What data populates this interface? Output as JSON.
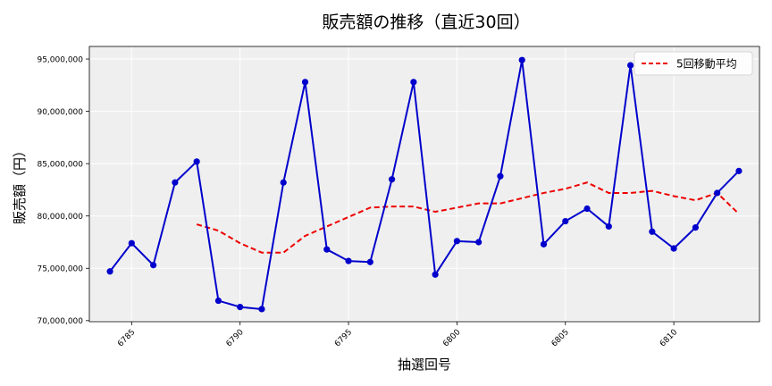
{
  "chart_data": {
    "type": "line",
    "title": "販売額の推移（直近30回）",
    "xlabel": "抽選回号",
    "ylabel": "販売額（円）",
    "x": [
      6784,
      6785,
      6786,
      6787,
      6788,
      6789,
      6790,
      6791,
      6792,
      6793,
      6794,
      6795,
      6796,
      6797,
      6798,
      6799,
      6800,
      6801,
      6802,
      6803,
      6804,
      6805,
      6806,
      6807,
      6808,
      6809,
      6810,
      6811,
      6812,
      6813
    ],
    "xlim": [
      6783.05,
      6813.95
    ],
    "ylim": [
      69900000,
      96200000
    ],
    "x_ticks": [
      "6785",
      "6790",
      "6795",
      "6800",
      "6805",
      "6810"
    ],
    "y_ticks": [
      "70,000,000",
      "75,000,000",
      "80,000,000",
      "85,000,000",
      "90,000,000",
      "95,000,000"
    ],
    "grid": true,
    "legend_position": "top-right",
    "series": [
      {
        "values": [
          74700000,
          77400000,
          75300000,
          83200000,
          85200000,
          71900000,
          71300000,
          71100000,
          83200000,
          92800000,
          76800000,
          75700000,
          75600000,
          83500000,
          92800000,
          74400000,
          77600000,
          77500000,
          83800000,
          94900000,
          77300000,
          79500000,
          80700000,
          79000000,
          94400000,
          78500000,
          76900000,
          78900000,
          82200000,
          84300000
        ],
        "color": "#0000cc",
        "style": "solid-marker"
      },
      {
        "name": "5回移動平均",
        "values": [
          null,
          null,
          null,
          null,
          79200000,
          78600000,
          77400000,
          76500000,
          76500000,
          78100000,
          79000000,
          79900000,
          80800000,
          80900000,
          80900000,
          80400000,
          80800000,
          81200000,
          81200000,
          81700000,
          82200000,
          82600000,
          83200000,
          82200000,
          82200000,
          82400000,
          81900000,
          81500000,
          82200000,
          80200000
        ],
        "color": "#ee0000",
        "style": "dashed"
      }
    ]
  }
}
